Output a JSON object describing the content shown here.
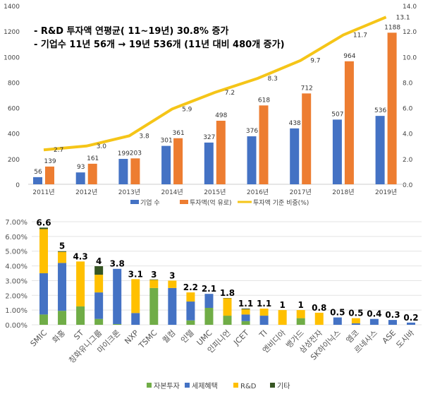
{
  "colors": {
    "blue": "#4472C4",
    "orange": "#ED7D31",
    "gold": "#F5C518",
    "green": "#70AD47",
    "yellow": "#FFC000",
    "darkgreen": "#375623"
  },
  "chart_data": [
    {
      "type": "bar",
      "annotations": [
        "-  R&D 투자액 연평균( 11~19년) 30.8% 증가",
        "-  기업수 11년 56개 → 19년 536개 (11년 대비 480개 증가)"
      ],
      "categories": [
        "2011년",
        "2012년",
        "2013년",
        "2014년",
        "2015년",
        "2016년",
        "2017년",
        "2018년",
        "2019년"
      ],
      "ylim": [
        0,
        1400
      ],
      "y2lim": [
        0,
        14
      ],
      "yticks": [
        "0",
        "200",
        "400",
        "600",
        "800",
        "1000",
        "1200",
        "1400"
      ],
      "y2ticks": [
        "0.0",
        "2.0",
        "4.0",
        "6.0",
        "8.0",
        "10.0",
        "12.0",
        "14.0"
      ],
      "series": [
        {
          "name": "기업 수",
          "type": "bar",
          "axis": "left",
          "values": [
            56,
            93,
            199,
            301,
            327,
            376,
            438,
            507,
            536
          ]
        },
        {
          "name": "투자액(억 유로)",
          "type": "bar",
          "axis": "left",
          "values": [
            139,
            161,
            203,
            361,
            498,
            618,
            712,
            964,
            1188
          ]
        },
        {
          "name": "투자액 기준 비중(%)",
          "type": "line",
          "axis": "right",
          "values": [
            2.7,
            3.0,
            3.8,
            5.9,
            7.2,
            8.3,
            9.7,
            11.7,
            13.1
          ],
          "labels": [
            "2.7",
            "3.0",
            "3.8",
            "5.9",
            "7.2",
            "8.3",
            "9.7",
            "11.7",
            "13.1"
          ]
        }
      ],
      "legend": "bottom"
    },
    {
      "type": "bar",
      "stacked": true,
      "categories": [
        "SMIC",
        "화홍",
        "ST",
        "칭화유니그룹",
        "마이크론",
        "NXP",
        "TSMC",
        "퀄컴",
        "인텔",
        "UMC",
        "인피니언",
        "JCET",
        "TI",
        "엔비디아",
        "뱅가드",
        "삼성전자",
        "SK하이닉스",
        "엠코",
        "르네사스",
        "ASE",
        "도시바"
      ],
      "totals_labels": [
        "6.6",
        "5",
        "4.3",
        "4",
        "3.8",
        "3.1",
        "3",
        "3",
        "2.2",
        "2.1",
        "1.8",
        "1.1",
        "1.1",
        "1",
        "1",
        "0.8",
        "0.5",
        "0.5",
        "0.4",
        "0.3",
        "0.2"
      ],
      "ylim": [
        0,
        7
      ],
      "yticks": [
        "0.00%",
        "1.00%",
        "2.00%",
        "3.00%",
        "4.00%",
        "5.00%",
        "6.00%",
        "7.00%"
      ],
      "series": [
        {
          "name": "자본투자",
          "values": [
            0.7,
            0.95,
            1.25,
            0.4,
            0.05,
            0,
            2.5,
            0,
            0.3,
            1.15,
            0.62,
            0.25,
            0,
            0,
            0.45,
            0,
            0,
            0,
            0,
            0,
            0
          ]
        },
        {
          "name": "세제혜택",
          "values": [
            2.8,
            3.25,
            0,
            1.8,
            3.75,
            0.8,
            0,
            2.5,
            1.28,
            0.95,
            0,
            0.45,
            0.62,
            0,
            0,
            0,
            0.5,
            0.1,
            0.4,
            0.33,
            0.15
          ]
        },
        {
          "name": "R&D",
          "values": [
            3.0,
            0.75,
            3.05,
            1.2,
            0,
            2.3,
            0.55,
            0.5,
            0.62,
            0,
            1.18,
            0.35,
            0.48,
            1.0,
            0.55,
            0.82,
            0,
            0.35,
            0,
            0,
            0
          ]
        },
        {
          "name": "기타",
          "values": [
            0.1,
            0.05,
            0,
            0.58,
            0,
            0,
            0.03,
            0,
            0,
            0,
            0.02,
            0.05,
            0,
            0,
            0,
            0,
            0,
            0,
            0,
            0,
            0
          ]
        }
      ],
      "grid": true,
      "legend": "bottom"
    }
  ]
}
